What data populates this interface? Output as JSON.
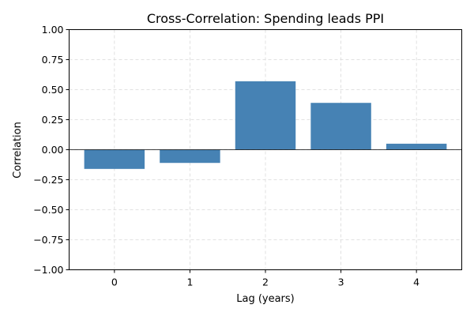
{
  "chart_data": {
    "type": "bar",
    "title": "Cross-Correlation: Spending leads PPI",
    "xlabel": "Lag (years)",
    "ylabel": "Correlation",
    "categories": [
      "0",
      "1",
      "2",
      "3",
      "4"
    ],
    "values": [
      -0.16,
      -0.11,
      0.57,
      0.39,
      0.05
    ],
    "ylim": [
      -1.0,
      1.0
    ],
    "yticks": [
      "−1.00",
      "−0.75",
      "−0.50",
      "−0.25",
      "0.00",
      "0.25",
      "0.50",
      "0.75",
      "1.00"
    ],
    "grid": true,
    "bar_color": "#4682b4",
    "baseline_color": "#000000",
    "grid_color": "#d9d9d9"
  }
}
